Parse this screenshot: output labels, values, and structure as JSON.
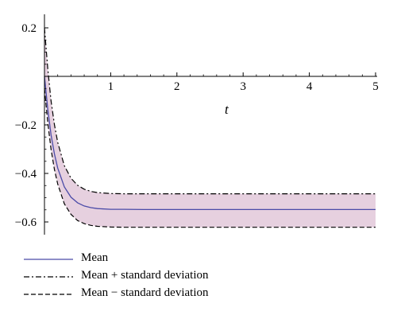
{
  "chart_data": {
    "type": "line",
    "xlabel": "t",
    "ylabel": "",
    "xlim": [
      0,
      5
    ],
    "ylim": [
      -0.63,
      0.25
    ],
    "x_ticks": [
      1,
      2,
      3,
      4,
      5
    ],
    "y_ticks": [
      0.2,
      -0.2,
      -0.4,
      -0.6
    ],
    "x_tick_labels": [
      "1",
      "2",
      "3",
      "4",
      "5"
    ],
    "y_tick_labels": [
      "0.2",
      "−0.2",
      "−0.4",
      "−0.6"
    ],
    "grid": false,
    "legend_position": "bottom-left",
    "band_color": "#e6d0df",
    "series": [
      {
        "name": "Mean",
        "style": "solid",
        "color": "#4b4ba8",
        "x": [
          0,
          0.05,
          0.1,
          0.15,
          0.2,
          0.3,
          0.4,
          0.5,
          0.6,
          0.7,
          0.8,
          1.0,
          1.2,
          1.5,
          2,
          3,
          4,
          5
        ],
        "y": [
          0.0,
          -0.136,
          -0.241,
          -0.319,
          -0.378,
          -0.455,
          -0.498,
          -0.521,
          -0.534,
          -0.541,
          -0.545,
          -0.548,
          -0.548,
          -0.549,
          -0.549,
          -0.549,
          -0.549,
          -0.549
        ]
      },
      {
        "name": "Mean + standard deviation",
        "style": "dashdot",
        "color": "#000000",
        "x": [
          0,
          0.05,
          0.1,
          0.15,
          0.2,
          0.3,
          0.4,
          0.5,
          0.6,
          0.7,
          0.8,
          1.0,
          1.2,
          1.5,
          2,
          3,
          4,
          5
        ],
        "y": [
          0.2,
          0.03,
          -0.101,
          -0.198,
          -0.272,
          -0.368,
          -0.42,
          -0.449,
          -0.465,
          -0.474,
          -0.479,
          -0.483,
          -0.484,
          -0.484,
          -0.484,
          -0.484,
          -0.484,
          -0.484
        ]
      },
      {
        "name": "Mean − standard deviation",
        "style": "dashed",
        "color": "#000000",
        "x": [
          0,
          0.05,
          0.1,
          0.15,
          0.2,
          0.3,
          0.4,
          0.5,
          0.6,
          0.7,
          0.8,
          1.0,
          1.2,
          1.5,
          2,
          3,
          4,
          5
        ],
        "y": [
          -0.05,
          -0.192,
          -0.301,
          -0.383,
          -0.444,
          -0.525,
          -0.569,
          -0.594,
          -0.607,
          -0.614,
          -0.618,
          -0.621,
          -0.622,
          -0.622,
          -0.622,
          -0.622,
          -0.622,
          -0.622
        ]
      }
    ]
  },
  "legend": {
    "mean": "Mean",
    "plus": "Mean + standard deviation",
    "minus": "Mean − standard deviation"
  }
}
